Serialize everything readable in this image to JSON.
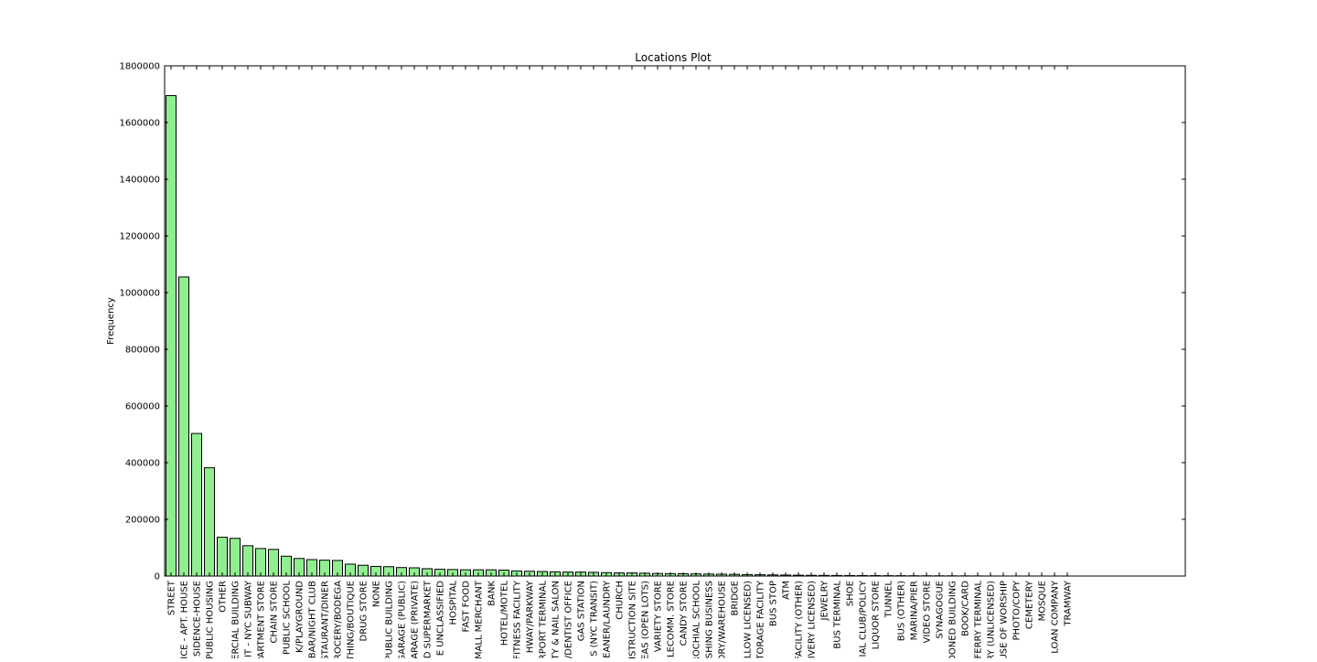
{
  "chart_data": {
    "type": "bar",
    "title": "Locations Plot",
    "xlabel": "",
    "ylabel": "Frequency",
    "ylim": [
      0,
      1800000
    ],
    "yticks": [
      0,
      200000,
      400000,
      600000,
      800000,
      1000000,
      1200000,
      1400000,
      1600000,
      1800000
    ],
    "ytick_labels": [
      "0",
      "200000",
      "400000",
      "600000",
      "800000",
      "1000000",
      "1200000",
      "1400000",
      "1600000",
      "1800000"
    ],
    "bar_color": "#90ee90",
    "edge_color": "#000000",
    "grid": false,
    "categories": [
      "STREET",
      "ICE - APT. HOUSE",
      "SIDENCE-HOUSE",
      "PUBLIC HOUSING",
      "OTHER",
      "ERCIAL BUILDING",
      "IT - NYC SUBWAY",
      "PARTMENT STORE",
      "CHAIN STORE",
      "PUBLIC SCHOOL",
      "K/PLAYGROUND",
      "BAR/NIGHT CLUB",
      "STAURANT/DINER",
      "ROCERY/BODEGA",
      "THING/BOUTIQUE",
      "DRUG STORE",
      "NONE",
      "PUBLIC BUILDING",
      "GARAGE (PUBLIC)",
      "ARAGE (PRIVATE)",
      "D SUPERMARKET",
      "E UNCLASSIFIED",
      "HOSPITAL",
      "FAST FOOD",
      "MALL MERCHANT",
      "BANK",
      "HOTEL/MOTEL",
      "FITNESS FACILITY",
      "HWAY/PARKWAY",
      "RPORT TERMINAL",
      "TY & NAIL SALON",
      "/DENTIST OFFICE",
      "GAS STATION",
      "S (NYC TRANSIT)",
      "EANER/LAUNDRY",
      "CHURCH",
      "NSTRUCTION SITE",
      "EAS (OPEN LOTS)",
      "VARIETY STORE",
      "ELECOMM. STORE",
      "CANDY STORE",
      "ROCHIAL SCHOOL",
      "SHING BUSINESS",
      "ORY/WAREHOUSE",
      "BRIDGE",
      "LLOW LICENSED)",
      "TORAGE FACILITY",
      "BUS STOP",
      "ATM",
      "FACILITY (OTHER)",
      "IVERY LICENSED)",
      "JEWELRY",
      "BUS TERMINAL",
      "SHOE",
      "IAL CLUB/POLICY",
      "LIQUOR STORE",
      "TUNNEL",
      "BUS (OTHER)",
      "MARINA/PIER",
      "VIDEO STORE",
      "SYNAGOGUE",
      "DONED BUILDING",
      "BOOK/CARD",
      "FERRY TERMINAL",
      "RY (UNLICENSED)",
      "USE OF WORSHIP",
      "PHOTO/COPY",
      "CEMETERY",
      "MOSQUE",
      "LOAN COMPANY",
      "TRAMWAY"
    ],
    "values": [
      1695000,
      1055000,
      503000,
      382000,
      137000,
      133000,
      107000,
      97000,
      94000,
      70000,
      62000,
      58000,
      56000,
      55000,
      42000,
      38000,
      34000,
      33000,
      30000,
      29000,
      26000,
      24000,
      23000,
      22000,
      22000,
      22000,
      21000,
      18000,
      17000,
      16000,
      15000,
      14000,
      14000,
      13000,
      12000,
      11000,
      11000,
      10000,
      9000,
      8500,
      8000,
      7500,
      7000,
      6500,
      6000,
      5000,
      4500,
      4000,
      3500,
      3000,
      2500,
      2200,
      2000,
      1800,
      1600,
      1500,
      1300,
      1200,
      1000,
      900,
      800,
      700,
      600,
      500,
      300,
      200,
      200,
      150,
      100,
      80,
      50
    ]
  }
}
